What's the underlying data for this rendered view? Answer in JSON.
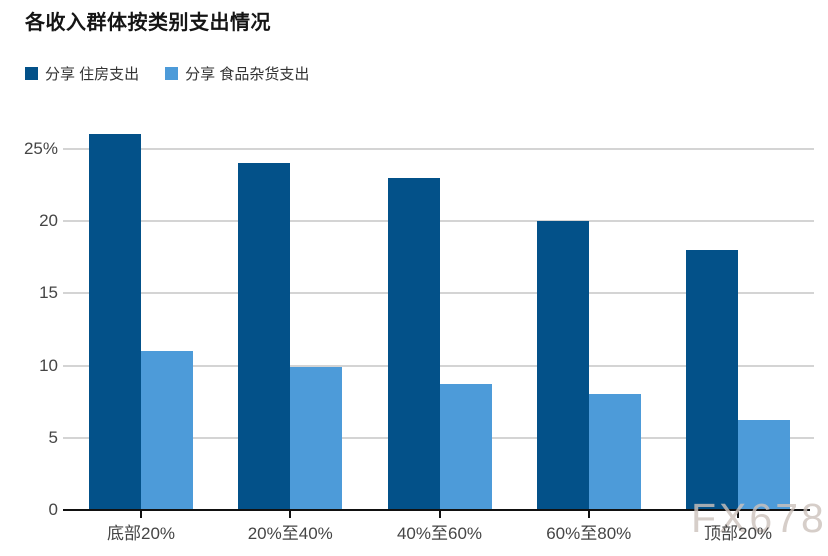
{
  "watermark": "FX678",
  "chart_data": {
    "type": "bar",
    "title": "各收入群体按类别支出情况",
    "categories": [
      "底部20%",
      "20%至40%",
      "40%至60%",
      "60%至80%",
      "顶部20%"
    ],
    "series": [
      {
        "name": "分享 住房支出",
        "color": "#035189",
        "values": [
          26,
          24,
          23,
          20,
          18
        ]
      },
      {
        "name": "分享 食品杂货支出",
        "color": "#4d9bd9",
        "values": [
          11,
          9.9,
          8.7,
          8,
          6.2
        ]
      }
    ],
    "y_axis": {
      "range": [
        0,
        26
      ],
      "ticks": [
        {
          "value": 0,
          "label": "0"
        },
        {
          "value": 5,
          "label": "5"
        },
        {
          "value": 10,
          "label": "10"
        },
        {
          "value": 15,
          "label": "15"
        },
        {
          "value": 20,
          "label": "20"
        },
        {
          "value": 25,
          "label": "25%"
        }
      ]
    },
    "grid": "horizontal",
    "legend_position": "top-left"
  }
}
